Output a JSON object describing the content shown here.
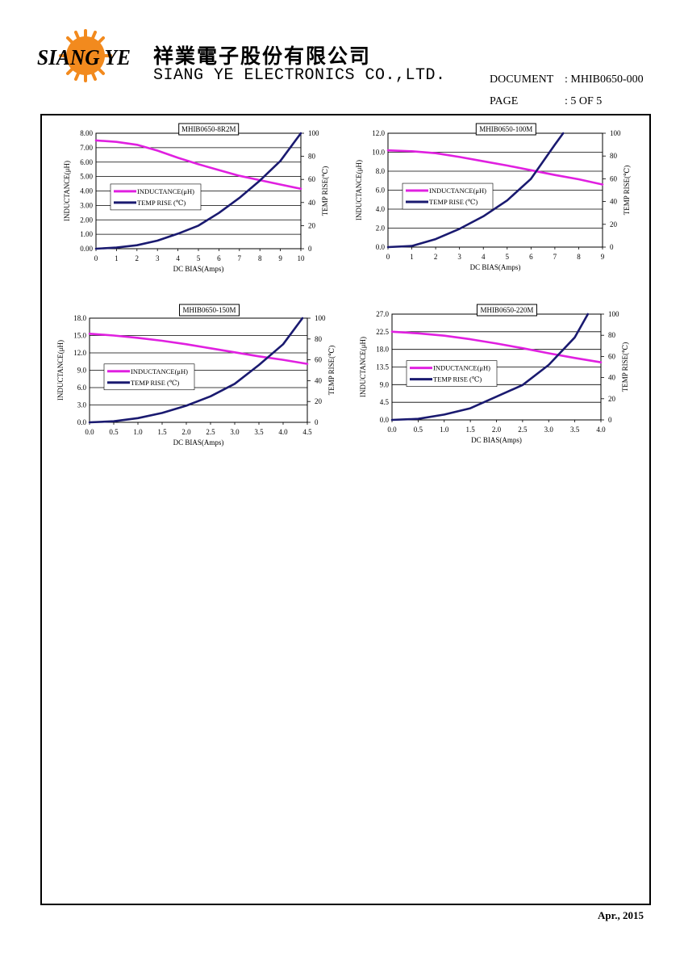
{
  "header": {
    "logo_text": "SIANG YE",
    "company_cn": "祥業電子股份有限公司",
    "company_en": "SIANG YE ELECTRONICS CO.,LTD.",
    "document_label": "DOCUMENT",
    "document_value": ": MHIB0650-000",
    "page_label": "PAGE",
    "page_value": ": 5 OF 5"
  },
  "footer": {
    "date": "Apr., 2015"
  },
  "colors": {
    "inductance": "#e020e0",
    "temp_rise": "#1a1a70"
  },
  "chart_data": [
    {
      "type": "line",
      "title": "MHIB0650-8R2M",
      "xlabel": "DC BIAS(Amps)",
      "ylabel": "INDUCTANCE(μH)",
      "y2label": "TEMP RISE(℃)",
      "xlim": [
        0,
        10
      ],
      "ylim": [
        0,
        8
      ],
      "y2lim": [
        0,
        100
      ],
      "xticks": [
        "0",
        "1",
        "2",
        "3",
        "4",
        "5",
        "6",
        "7",
        "8",
        "9",
        "10"
      ],
      "yticks": [
        "0.00",
        "1.00",
        "2.00",
        "3.00",
        "4.00",
        "5.00",
        "6.00",
        "7.00",
        "8.00"
      ],
      "y2ticks": [
        "0",
        "20",
        "40",
        "60",
        "80",
        "100"
      ],
      "legend": "center-left",
      "series": [
        {
          "name": "INDUCTANCE(μH)",
          "axis": "left",
          "x": [
            0,
            1,
            2,
            3,
            4,
            5,
            6,
            7,
            8,
            9,
            10
          ],
          "y": [
            7.5,
            7.4,
            7.2,
            6.8,
            6.3,
            5.85,
            5.45,
            5.05,
            4.75,
            4.45,
            4.15
          ]
        },
        {
          "name": "TEMP RISE (℃)",
          "axis": "right",
          "x": [
            0,
            1,
            2,
            3,
            4,
            5,
            6,
            7,
            8,
            9,
            10
          ],
          "y": [
            0,
            1,
            3,
            7,
            13,
            20,
            31,
            44,
            59,
            76,
            100
          ]
        }
      ]
    },
    {
      "type": "line",
      "title": "MHIB0650-100M",
      "xlabel": "DC BIAS(Amps)",
      "ylabel": "INDUCTANCE(μH)",
      "y2label": "TEMP RISE(℃)",
      "xlim": [
        0,
        9
      ],
      "ylim": [
        0,
        12
      ],
      "y2lim": [
        0,
        100
      ],
      "xticks": [
        "0",
        "1",
        "2",
        "3",
        "4",
        "5",
        "6",
        "7",
        "8",
        "9"
      ],
      "yticks": [
        "0.0",
        "2.0",
        "4.0",
        "6.0",
        "8.0",
        "10.0",
        "12.0"
      ],
      "y2ticks": [
        "0",
        "20",
        "40",
        "60",
        "80",
        "100"
      ],
      "legend": "center-left",
      "series": [
        {
          "name": "INDUCTANCE(μH)",
          "axis": "left",
          "x": [
            0,
            1,
            2,
            3,
            4,
            5,
            6,
            7,
            8,
            9
          ],
          "y": [
            10.2,
            10.1,
            9.9,
            9.5,
            9.05,
            8.6,
            8.1,
            7.6,
            7.15,
            6.6
          ]
        },
        {
          "name": "TEMP RISE (℃)",
          "axis": "right",
          "x": [
            0,
            1,
            2,
            3,
            4,
            5,
            6,
            6.5,
            7,
            7.35
          ],
          "y": [
            0,
            1,
            7,
            16,
            27,
            41,
            60,
            75,
            90,
            100
          ]
        }
      ]
    },
    {
      "type": "line",
      "title": "MHIB0650-150M",
      "xlabel": "DC BIAS(Amps)",
      "ylabel": "INDUCTANCE(μH)",
      "y2label": "TEMP RISE(℃)",
      "xlim": [
        0,
        4.5
      ],
      "ylim": [
        0,
        18
      ],
      "y2lim": [
        0,
        100
      ],
      "xticks": [
        "0.0",
        "0.5",
        "1.0",
        "1.5",
        "2.0",
        "2.5",
        "3.0",
        "3.5",
        "4.0",
        "4.5"
      ],
      "yticks": [
        "0.0",
        "3.0",
        "6.0",
        "9.0",
        "12.0",
        "15.0",
        "18.0"
      ],
      "y2ticks": [
        "0",
        "20",
        "40",
        "60",
        "80",
        "100"
      ],
      "legend": "center-left",
      "series": [
        {
          "name": "INDUCTANCE(μH)",
          "axis": "left",
          "x": [
            0,
            0.5,
            1.0,
            1.5,
            2.0,
            2.5,
            3.0,
            3.5,
            4.0,
            4.5
          ],
          "y": [
            15.3,
            15.0,
            14.6,
            14.1,
            13.5,
            12.8,
            12.1,
            11.4,
            10.8,
            10.1
          ]
        },
        {
          "name": "TEMP RISE (℃)",
          "axis": "right",
          "x": [
            0,
            0.5,
            1.0,
            1.5,
            2.0,
            2.5,
            3.0,
            3.5,
            4.0,
            4.4
          ],
          "y": [
            0,
            1,
            4,
            9,
            16,
            25,
            37,
            55,
            75,
            100
          ]
        }
      ]
    },
    {
      "type": "line",
      "title": "MHIB0650-220M",
      "xlabel": "DC BIAS(Amps)",
      "ylabel": "INDUCTANCE(μH)",
      "y2label": "TEMP RISE(℃)",
      "xlim": [
        0,
        4.0
      ],
      "ylim": [
        0,
        27
      ],
      "y2lim": [
        0,
        100
      ],
      "xticks": [
        "0.0",
        "0.5",
        "1.0",
        "1.5",
        "2.0",
        "2.5",
        "3.0",
        "3.5",
        "4.0"
      ],
      "yticks": [
        "0.0",
        "4.5",
        "9.0",
        "13.5",
        "18.0",
        "22.5",
        "27.0"
      ],
      "y2ticks": [
        "0",
        "20",
        "40",
        "60",
        "80",
        "100"
      ],
      "legend": "center-left",
      "series": [
        {
          "name": "INDUCTANCE(μH)",
          "axis": "left",
          "x": [
            0,
            0.5,
            1.0,
            1.5,
            2.0,
            2.5,
            3.0,
            3.5,
            4.0
          ],
          "y": [
            22.5,
            22.1,
            21.5,
            20.6,
            19.5,
            18.3,
            17.0,
            15.8,
            14.7
          ]
        },
        {
          "name": "TEMP RISE (℃)",
          "axis": "right",
          "x": [
            0,
            0.5,
            1.0,
            1.5,
            2.0,
            2.5,
            3.0,
            3.5,
            3.75
          ],
          "y": [
            0,
            1,
            5,
            11,
            22,
            33,
            52,
            78,
            100
          ]
        }
      ]
    }
  ]
}
